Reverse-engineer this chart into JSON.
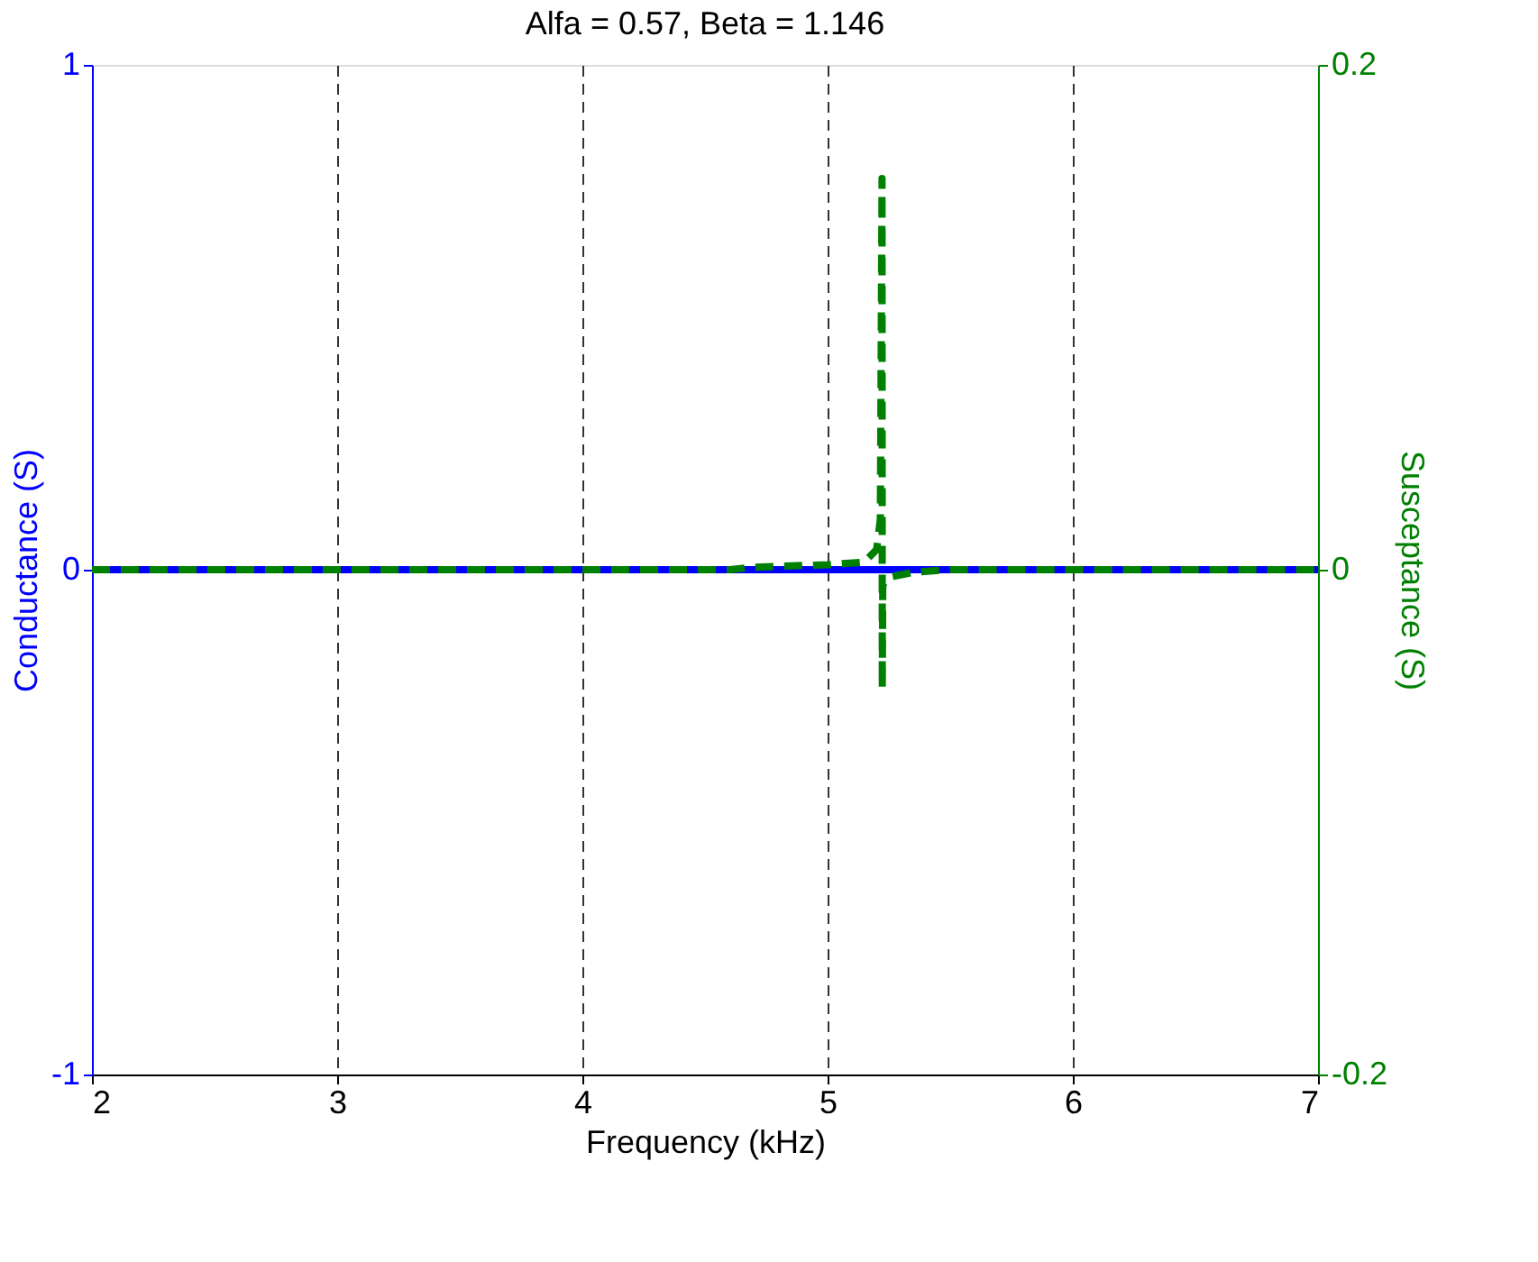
{
  "chart_data": {
    "type": "line",
    "title": "Alfa = 0.57, Beta = 1.146",
    "xlabel": "Frequency (kHz)",
    "ylabel": "Conductance (S)",
    "y2label": "Susceptance (S)",
    "xlim": [
      2,
      7
    ],
    "xticks": [
      2,
      3,
      4,
      5,
      6,
      7
    ],
    "ylim": [
      -1,
      1
    ],
    "yticks": [
      -1,
      0,
      1
    ],
    "y2lim": [
      -0.2,
      0.2
    ],
    "y2ticks": [
      -0.2,
      0,
      0.2
    ],
    "grid": "x",
    "series": [
      {
        "color": "#0000ff",
        "line_style": "solid",
        "x": [
          2,
          7
        ],
        "values": [
          0,
          0
        ]
      },
      {
        "color": "#008000",
        "line_style": "dashed",
        "axis": "y2",
        "x": [
          2,
          4.6,
          4.7,
          5.0,
          5.15,
          5.2,
          5.215,
          5.222,
          5.223,
          5.225,
          5.25,
          5.35,
          5.5,
          7
        ],
        "values": [
          0,
          0,
          0.001,
          0.002,
          0.003,
          0.008,
          0.02,
          0.155,
          -0.047,
          -0.006,
          -0.003,
          -0.001,
          0,
          0
        ]
      }
    ]
  }
}
